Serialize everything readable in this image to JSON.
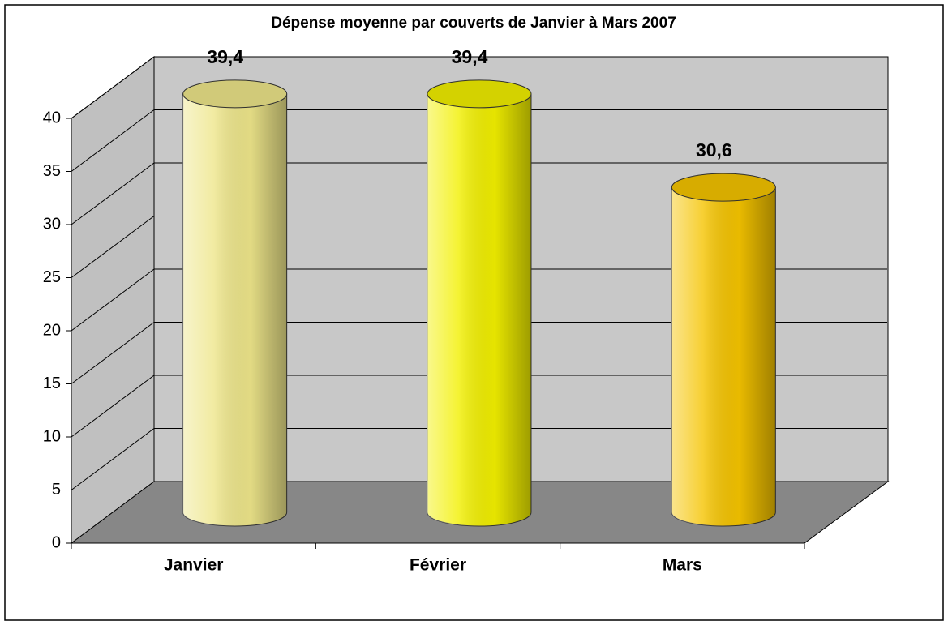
{
  "chart_data": {
    "type": "bar3d",
    "title": "Dépense moyenne par couverts de Janvier à Mars 2007",
    "categories": [
      "Janvier",
      "Février",
      "Mars"
    ],
    "values": [
      39.4,
      39.4,
      30.6
    ],
    "value_labels": [
      "39,4",
      "39,4",
      "30,6"
    ],
    "colors": [
      "#eee68a",
      "#f2f000",
      "#f5c400"
    ],
    "ylim": [
      0,
      40
    ],
    "yticks": [
      0,
      5,
      10,
      15,
      20,
      25,
      30,
      35,
      40
    ],
    "grid": true
  }
}
